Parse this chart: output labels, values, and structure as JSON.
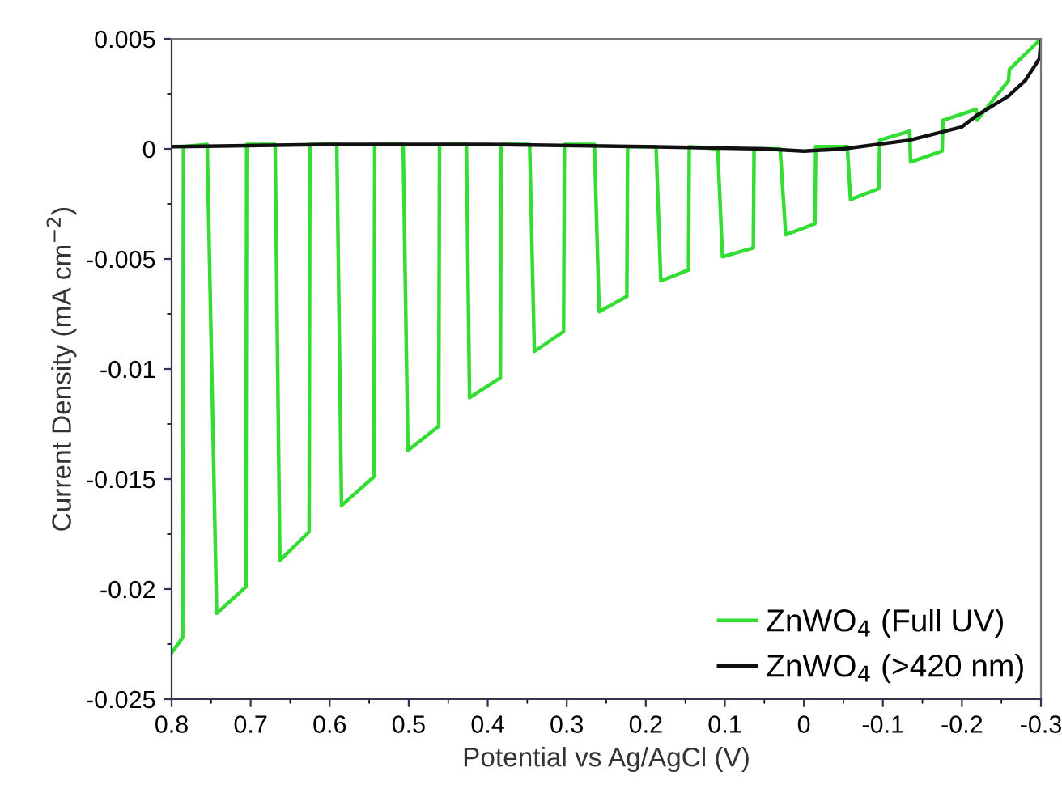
{
  "chart_data": {
    "type": "line",
    "xlabel": "Potential vs Ag/AgCl (V)",
    "ylabel": "Current Density (mA cm$^{−2}$)",
    "xlim": [
      0.8,
      -0.3
    ],
    "xticks": [
      0.8,
      0.7,
      0.6,
      0.5,
      0.4,
      0.3,
      0.2,
      0.1,
      0,
      -0.1,
      -0.2,
      -0.3
    ],
    "ylim": [
      -0.025,
      0.005
    ],
    "yticks": [
      0.005,
      0,
      -0.005,
      -0.01,
      -0.015,
      -0.02,
      -0.025
    ],
    "legend": "bottom right",
    "grid": false,
    "marker": "none",
    "line_style": "solid",
    "series": [
      {
        "name": "ZnWO$_{4}$ (Full UV)",
        "color": "#33dd33",
        "x": [
          0.8,
          0.786,
          0.785,
          0.755,
          0.743,
          0.706,
          0.705,
          0.669,
          0.663,
          0.626,
          0.625,
          0.591,
          0.585,
          0.544,
          0.543,
          0.507,
          0.501,
          0.462,
          0.461,
          0.427,
          0.423,
          0.384,
          0.383,
          0.347,
          0.341,
          0.304,
          0.303,
          0.265,
          0.259,
          0.224,
          0.223,
          0.187,
          0.181,
          0.146,
          0.145,
          0.109,
          0.103,
          0.064,
          0.063,
          0.03,
          0.023,
          -0.014,
          -0.015,
          -0.055,
          -0.059,
          -0.095,
          -0.096,
          -0.134,
          -0.135,
          -0.175,
          -0.176,
          -0.218,
          -0.219,
          -0.259,
          -0.26,
          -0.3
        ],
        "values": [
          -0.0229,
          -0.0222,
          0.0001,
          0.0002,
          -0.0211,
          -0.0199,
          0.0002,
          0.0002,
          -0.0187,
          -0.0174,
          0.0002,
          0.0002,
          -0.0162,
          -0.0149,
          0.0002,
          0.0002,
          -0.0137,
          -0.0126,
          0.0002,
          0.0002,
          -0.0113,
          -0.0104,
          0.0002,
          0.0002,
          -0.0092,
          -0.0083,
          0.0002,
          0.0002,
          -0.0074,
          -0.0067,
          0.0001,
          0.0001,
          -0.006,
          -0.0055,
          0.0001,
          0,
          -0.0049,
          -0.0045,
          0,
          0,
          -0.0039,
          -0.0034,
          0.0001,
          0.0001,
          -0.0023,
          -0.0018,
          0.0004,
          0.0008,
          -0.0006,
          -0.0001,
          0.0013,
          0.0018,
          0.0013,
          0.0031,
          0.0036,
          0.005
        ]
      },
      {
        "name": "ZnWO$_{4}$ (>420 nm)",
        "color": "#111111",
        "x": [
          0.8,
          0.6,
          0.4,
          0.2,
          0.05,
          0,
          -0.05,
          -0.134,
          -0.2,
          -0.218,
          -0.259,
          -0.28,
          -0.298,
          -0.3
        ],
        "values": [
          0.0001,
          0.0002,
          0.0002,
          0.0001,
          0,
          -0.0001,
          0,
          0.0004,
          0.001,
          0.0015,
          0.0024,
          0.0031,
          0.0041,
          0.005
        ]
      }
    ]
  }
}
